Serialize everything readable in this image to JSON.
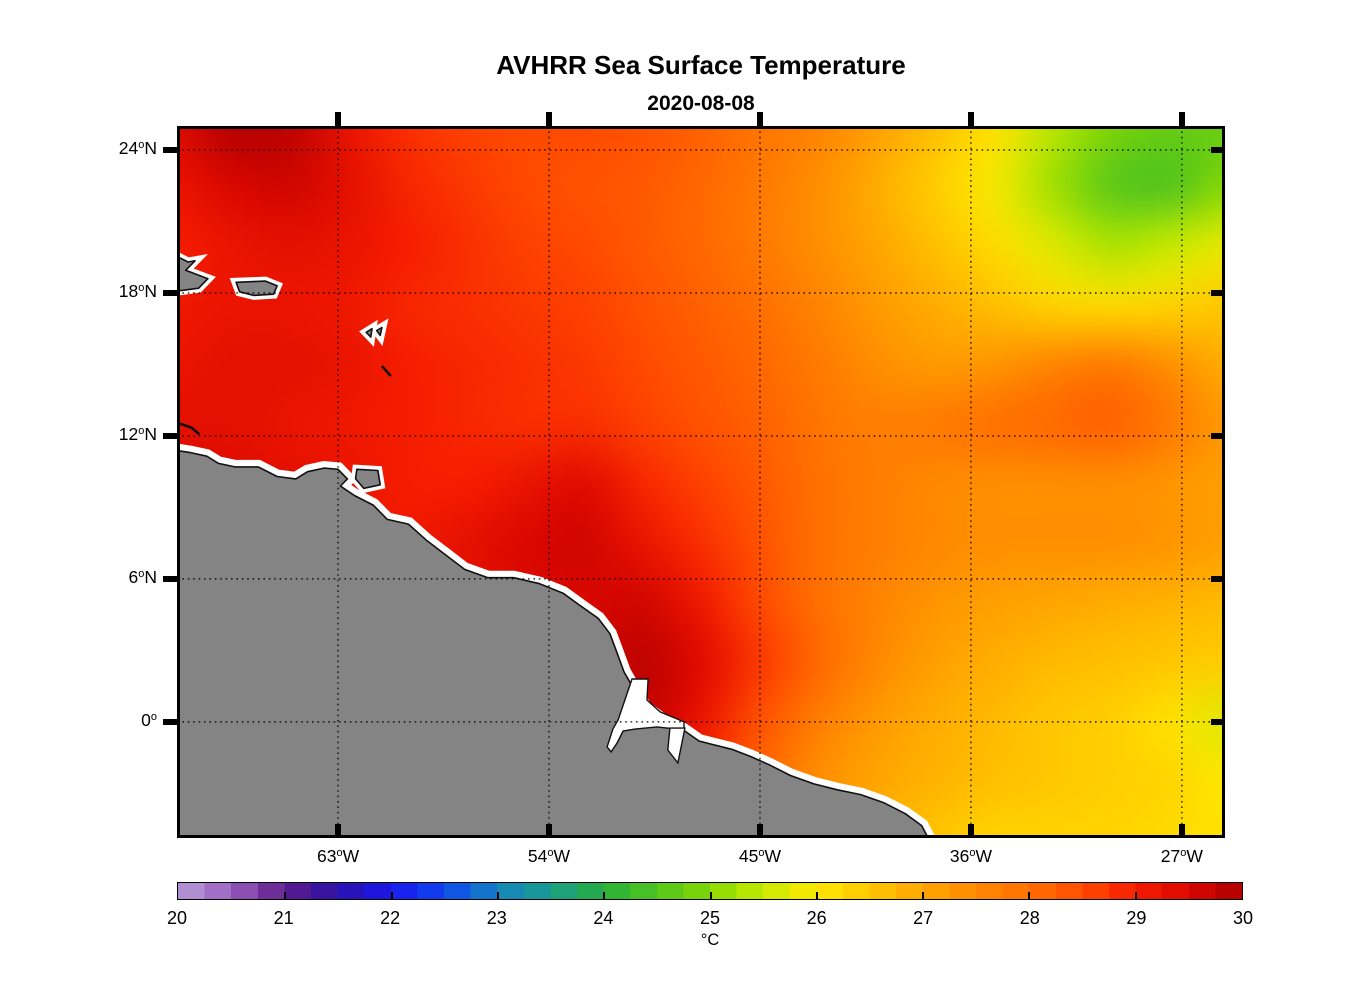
{
  "chart_data": {
    "type": "heatmap",
    "title": "AVHRR Sea Surface Temperature",
    "subtitle": "2020-08-08",
    "colorbar": {
      "label": "°C",
      "min": 20,
      "max": 30,
      "tick_labels": [
        "20",
        "21",
        "22",
        "23",
        "24",
        "25",
        "26",
        "27",
        "28",
        "29",
        "30"
      ],
      "step_degC": 0.25,
      "colormap": [
        [
          20.0,
          "#b79dd6"
        ],
        [
          20.5,
          "#9a5fc0"
        ],
        [
          21.0,
          "#5e1d8a"
        ],
        [
          21.5,
          "#2d11a8"
        ],
        [
          22.0,
          "#1a18ee"
        ],
        [
          22.5,
          "#1047ee"
        ],
        [
          23.0,
          "#1583c0"
        ],
        [
          23.5,
          "#189d8c"
        ],
        [
          24.0,
          "#27ae3c"
        ],
        [
          24.5,
          "#52c41e"
        ],
        [
          25.0,
          "#86d803"
        ],
        [
          25.5,
          "#c6ea00"
        ],
        [
          26.0,
          "#ffe800"
        ],
        [
          26.5,
          "#ffc700"
        ],
        [
          27.0,
          "#ffa600"
        ],
        [
          27.5,
          "#ff8900"
        ],
        [
          28.0,
          "#ff7000"
        ],
        [
          28.5,
          "#ff4a00"
        ],
        [
          29.0,
          "#f51d00"
        ],
        [
          29.5,
          "#d90700"
        ],
        [
          30.0,
          "#ab0000"
        ]
      ]
    },
    "axes": {
      "lon_range": [
        -69.87,
        -25.16
      ],
      "lat_range": [
        -4.87,
        25.01
      ],
      "gridline_style": "dotted",
      "x_ticks": [
        {
          "lon": -63,
          "deg": "63",
          "hemi": "W"
        },
        {
          "lon": -54,
          "deg": "54",
          "hemi": "W"
        },
        {
          "lon": -45,
          "deg": "45",
          "hemi": "W"
        },
        {
          "lon": -36,
          "deg": "36",
          "hemi": "W"
        },
        {
          "lon": -27,
          "deg": "27",
          "hemi": "W"
        }
      ],
      "y_ticks": [
        {
          "lat": 24,
          "deg": "24",
          "hemi": "N"
        },
        {
          "lat": 18,
          "deg": "18",
          "hemi": "N"
        },
        {
          "lat": 12,
          "deg": "12",
          "hemi": "N"
        },
        {
          "lat": 6,
          "deg": "6",
          "hemi": "N"
        },
        {
          "lat": 0,
          "deg": "0",
          "hemi": ""
        }
      ]
    },
    "sst_grid": {
      "units": "degC",
      "lons": [
        -70,
        -67.5,
        -65,
        -62.5,
        -60,
        -57.5,
        -55,
        -52.5,
        -50,
        -47.5,
        -45,
        -42.5,
        -40,
        -37.5,
        -35,
        -32.5,
        -30,
        -27.5,
        -25
      ],
      "lats": [
        25,
        22.5,
        20,
        17.5,
        15,
        12.5,
        10,
        7.5,
        5,
        2.5,
        0,
        -2.5,
        -5
      ],
      "values": [
        [
          29.4,
          29.9,
          29.8,
          29.2,
          28.8,
          28.6,
          28.5,
          28.5,
          28.4,
          28.2,
          27.9,
          27.6,
          27.1,
          26.6,
          26.1,
          25.4,
          24.9,
          24.7,
          24.7
        ],
        [
          29.2,
          29.5,
          29.6,
          29.3,
          28.9,
          28.7,
          28.5,
          28.4,
          28.3,
          28.1,
          27.8,
          27.4,
          26.9,
          26.4,
          25.9,
          25.2,
          24.6,
          24.5,
          25.0
        ],
        [
          29.0,
          29.2,
          29.3,
          29.2,
          29.0,
          28.8,
          28.6,
          28.5,
          28.3,
          28.1,
          27.8,
          27.4,
          27.0,
          26.6,
          26.2,
          25.7,
          25.3,
          25.5,
          25.8
        ],
        [
          29.1,
          29.2,
          29.2,
          29.1,
          28.9,
          28.8,
          28.7,
          28.6,
          28.4,
          28.2,
          28.0,
          27.6,
          27.2,
          26.9,
          26.6,
          26.3,
          26.2,
          26.3,
          26.5
        ],
        [
          29.2,
          29.3,
          29.3,
          29.2,
          29.0,
          28.9,
          28.8,
          28.7,
          28.5,
          28.3,
          28.1,
          27.8,
          27.4,
          27.2,
          27.3,
          27.6,
          27.8,
          27.4,
          26.9
        ],
        [
          29.3,
          29.3,
          29.2,
          29.1,
          29.0,
          28.9,
          28.8,
          28.8,
          28.6,
          28.4,
          28.2,
          27.9,
          27.7,
          27.8,
          28.0,
          28.1,
          28.2,
          27.8,
          27.2
        ],
        [
          29.4,
          29.4,
          29.3,
          29.2,
          29.0,
          29.0,
          29.2,
          29.4,
          28.9,
          28.6,
          28.3,
          28.0,
          27.7,
          27.5,
          27.4,
          27.4,
          27.4,
          27.3,
          27.1
        ],
        [
          29.3,
          29.3,
          29.2,
          29.1,
          29.1,
          29.3,
          29.5,
          29.6,
          29.2,
          28.8,
          28.4,
          28.0,
          27.7,
          27.5,
          27.4,
          27.4,
          27.4,
          27.3,
          27.1
        ],
        [
          29.2,
          29.2,
          29.1,
          29.1,
          29.1,
          29.2,
          29.4,
          29.5,
          29.6,
          29.1,
          28.5,
          28.0,
          27.6,
          27.3,
          27.1,
          27.0,
          26.9,
          26.8,
          26.7
        ],
        [
          29.1,
          29.1,
          29.0,
          29.0,
          29.0,
          29.1,
          29.2,
          29.5,
          29.8,
          29.4,
          28.7,
          28.1,
          27.5,
          27.1,
          26.9,
          26.7,
          26.6,
          26.5,
          26.4
        ],
        [
          29.0,
          29.0,
          29.0,
          28.9,
          28.9,
          29.0,
          29.1,
          29.3,
          29.7,
          29.2,
          28.4,
          27.7,
          27.2,
          26.9,
          26.7,
          26.5,
          26.4,
          26.1,
          25.7
        ],
        [
          28.9,
          28.9,
          28.9,
          28.8,
          28.8,
          28.9,
          29.0,
          29.1,
          29.3,
          28.8,
          28.1,
          27.4,
          27.0,
          26.8,
          26.6,
          26.5,
          26.4,
          26.3,
          26.0
        ],
        [
          28.8,
          28.8,
          28.8,
          28.8,
          28.8,
          28.8,
          28.9,
          29.0,
          29.1,
          28.6,
          27.9,
          27.3,
          26.9,
          26.5,
          26.3,
          26.3,
          26.3,
          26.2,
          26.1
        ]
      ]
    },
    "land": {
      "fill": "#848484",
      "outline": "#111111",
      "coast_halo": "#ffffff",
      "mainland": [
        [
          -70.3,
          11.45
        ],
        [
          -69.3,
          11.3
        ],
        [
          -68.6,
          11.15
        ],
        [
          -68.1,
          10.85
        ],
        [
          -67.4,
          10.7
        ],
        [
          -66.4,
          10.7
        ],
        [
          -65.6,
          10.3
        ],
        [
          -64.8,
          10.2
        ],
        [
          -64.3,
          10.5
        ],
        [
          -63.6,
          10.65
        ],
        [
          -63.0,
          10.6
        ],
        [
          -62.6,
          10.2
        ],
        [
          -62.9,
          9.9
        ],
        [
          -62.3,
          9.5
        ],
        [
          -61.5,
          9.1
        ],
        [
          -60.9,
          8.5
        ],
        [
          -60.0,
          8.3
        ],
        [
          -59.2,
          7.6
        ],
        [
          -58.4,
          7.0
        ],
        [
          -57.6,
          6.4
        ],
        [
          -56.6,
          6.05
        ],
        [
          -55.5,
          6.05
        ],
        [
          -54.4,
          5.8
        ],
        [
          -53.4,
          5.4
        ],
        [
          -52.7,
          4.9
        ],
        [
          -51.9,
          4.35
        ],
        [
          -51.4,
          3.7
        ],
        [
          -51.1,
          2.9
        ],
        [
          -50.8,
          2.1
        ],
        [
          -50.45,
          1.5
        ],
        [
          -49.9,
          0.6
        ],
        [
          -49.2,
          0.1
        ],
        [
          -48.4,
          -0.25
        ],
        [
          -47.6,
          -0.8
        ],
        [
          -47.0,
          -0.95
        ],
        [
          -46.2,
          -1.15
        ],
        [
          -45.4,
          -1.45
        ],
        [
          -44.6,
          -1.8
        ],
        [
          -43.7,
          -2.25
        ],
        [
          -42.7,
          -2.6
        ],
        [
          -41.7,
          -2.85
        ],
        [
          -40.7,
          -3.05
        ],
        [
          -39.7,
          -3.4
        ],
        [
          -38.8,
          -3.85
        ],
        [
          -38.1,
          -4.35
        ],
        [
          -37.6,
          -5.3
        ],
        [
          -70.3,
          -5.3
        ]
      ],
      "islands": {
        "hispaniola": [
          [
            -70.4,
            19.8
          ],
          [
            -69.4,
            19.3
          ],
          [
            -69.1,
            19.35
          ],
          [
            -69.5,
            18.95
          ],
          [
            -68.55,
            18.6
          ],
          [
            -68.95,
            18.2
          ],
          [
            -69.7,
            18.1
          ],
          [
            -70.4,
            18.3
          ]
        ],
        "puerto_rico": [
          [
            -67.35,
            18.45
          ],
          [
            -66.1,
            18.5
          ],
          [
            -65.6,
            18.3
          ],
          [
            -65.75,
            17.95
          ],
          [
            -66.6,
            17.9
          ],
          [
            -67.2,
            18.05
          ]
        ],
        "trinidad": [
          [
            -62.2,
            10.6
          ],
          [
            -61.3,
            10.55
          ],
          [
            -61.2,
            9.95
          ],
          [
            -61.9,
            9.8
          ],
          [
            -62.25,
            10.2
          ]
        ],
        "guadeloupe_1": [
          [
            -61.8,
            16.35
          ],
          [
            -61.55,
            16.5
          ],
          [
            -61.6,
            16.15
          ]
        ],
        "guadeloupe_2": [
          [
            -61.35,
            16.42
          ],
          [
            -61.13,
            16.55
          ],
          [
            -61.2,
            16.22
          ]
        ]
      },
      "coast_lines": {
        "martinique": [
          [
            -61.1,
            14.9
          ],
          [
            -60.78,
            14.55
          ]
        ],
        "paraguana": [
          [
            -69.7,
            12.5
          ],
          [
            -69.25,
            12.35
          ],
          [
            -68.95,
            12.1
          ]
        ]
      },
      "estuaries": {
        "amazon": [
          [
            -50.46,
            1.8
          ],
          [
            -49.77,
            1.8
          ],
          [
            -49.82,
            0.92
          ],
          [
            -49.26,
            0.42
          ],
          [
            -48.62,
            0.16
          ],
          [
            -48.24,
            0.0
          ],
          [
            -48.24,
            -0.34
          ],
          [
            -49.39,
            -0.21
          ],
          [
            -50.33,
            -0.3
          ],
          [
            -50.84,
            -0.38
          ],
          [
            -51.1,
            -0.89
          ],
          [
            -51.35,
            -1.26
          ],
          [
            -51.52,
            -1.05
          ],
          [
            -51.27,
            -0.29
          ],
          [
            -51.05,
            0.08
          ],
          [
            -50.76,
            0.92
          ]
        ],
        "para_river": [
          [
            -48.84,
            -0.26
          ],
          [
            -48.2,
            -0.26
          ],
          [
            -48.5,
            -1.72
          ],
          [
            -48.93,
            -1.18
          ]
        ]
      }
    }
  }
}
